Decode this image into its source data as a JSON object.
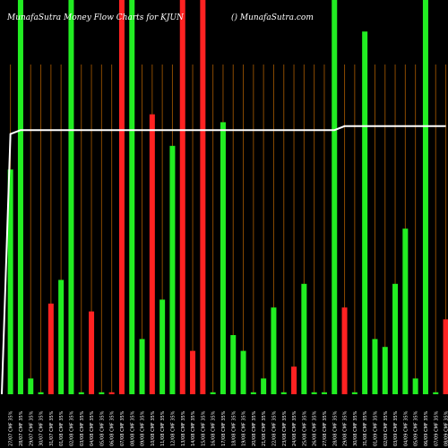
{
  "header": {
    "left": "MunafaSutra  Money Flow  Charts for KJUN",
    "right": "() MunafaSutra.com"
  },
  "chart_data": {
    "type": "bar",
    "title": "MunafaSutra  Money Flow  Charts for KJUN",
    "ylim": [
      0,
      100
    ],
    "colors": {
      "up": "#22ee22",
      "down": "#ff2222",
      "line": "#ffffff",
      "grid": "#8a4a00"
    },
    "categories": [
      "27/07 CMF 35%",
      "28/07 CMF 35%",
      "29/07 CMF 35%",
      "30/07 CMF 35%",
      "31/07 CMF 35%",
      "01/08 CMF 35%",
      "02/08 CMF 35%",
      "03/08 CMF 35%",
      "04/08 CMF 35%",
      "05/08 CMF 35%",
      "06/08 CMF 35%",
      "07/08 CMF 35%",
      "08/08 CMF 35%",
      "09/08 CMF 35%",
      "10/08 CMF 35%",
      "11/08 CMF 35%",
      "12/08 CMF 35%",
      "13/08 CMF 35%",
      "14/08 CMF 35%",
      "15/08 CMF 35%",
      "16/08 CMF 35%",
      "17/08 CMF 35%",
      "18/08 CMF 35%",
      "19/08 CMF 35%",
      "20/08 CMF 35%",
      "21/08 CMF 35%",
      "22/08 CMF 35%",
      "23/08 CMF 35%",
      "24/08 CMF 35%",
      "25/08 CMF 35%",
      "26/08 CMF 35%",
      "27/08 CMF 35%",
      "28/08 CMF 35%",
      "29/08 CMF 35%",
      "30/08 CMF 35%",
      "31/08 CMF 35%",
      "01/09 CMF 35%",
      "02/09 CMF 35%",
      "03/09 CMF 35%",
      "04/09 CMF 35%",
      "05/09 CMF 35%",
      "06/09 CMF 35%",
      "07/09 CMF 35%",
      "08/09 CMF 35%"
    ],
    "series": [
      {
        "values": [
          57,
          100,
          4,
          0.5,
          23,
          29,
          100,
          0.5,
          21,
          0.5,
          0.5,
          100,
          100,
          14,
          71,
          24,
          63,
          100,
          11,
          100,
          0.5,
          69,
          15,
          11,
          0.5,
          4,
          22,
          0.5,
          7,
          28,
          0.5,
          0.5,
          100,
          22,
          0.5,
          92,
          14,
          12,
          28,
          42,
          4,
          100,
          0.5,
          19
        ],
        "directions": [
          "up",
          "up",
          "up",
          "up",
          "down",
          "up",
          "up",
          "up",
          "down",
          "up",
          "down",
          "down",
          "up",
          "up",
          "down",
          "up",
          "up",
          "down",
          "down",
          "down",
          "up",
          "up",
          "up",
          "up",
          "up",
          "up",
          "up",
          "up",
          "down",
          "up",
          "up",
          "up",
          "up",
          "down",
          "up",
          "up",
          "up",
          "up",
          "up",
          "up",
          "up",
          "up",
          "up",
          "down"
        ]
      },
      {
        "values": [
          66,
          67,
          67,
          67,
          67,
          67,
          67,
          67,
          67,
          67,
          67,
          67,
          67,
          67,
          67,
          67,
          67,
          67,
          67,
          67,
          67,
          67,
          67,
          67,
          67,
          67,
          67,
          67,
          67,
          67,
          67,
          67,
          67,
          68,
          68,
          68,
          68,
          68,
          68,
          68,
          68,
          68,
          68,
          68
        ]
      }
    ]
  }
}
